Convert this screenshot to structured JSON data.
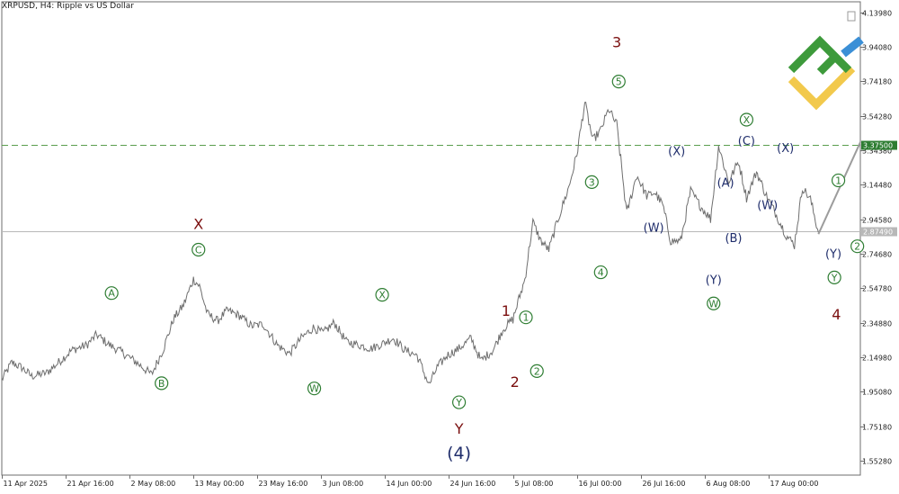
{
  "header": {
    "symbol_line": "XRPUSD, H4:  Ripple vs US Dollar"
  },
  "chart_data": {
    "type": "line",
    "title": "XRPUSD, H4:  Ripple vs US Dollar",
    "xlabel": "",
    "ylabel": "",
    "ylim": [
      1.47,
      4.2
    ],
    "y_ticks": [
      "1.55280",
      "1.75180",
      "1.95080",
      "2.14980",
      "2.34880",
      "2.54780",
      "2.74680",
      "2.94580",
      "3.14480",
      "3.34380",
      "3.54280",
      "3.74180",
      "3.94080",
      "4.13980"
    ],
    "x_ticks": [
      {
        "label": "11 Apr 2025",
        "i": 0
      },
      {
        "label": "21 Apr 16:00",
        "i": 64
      },
      {
        "label": "2 May 08:00",
        "i": 128
      },
      {
        "label": "13 May 00:00",
        "i": 192
      },
      {
        "label": "23 May 16:00",
        "i": 256
      },
      {
        "label": "3 Jun 08:00",
        "i": 320
      },
      {
        "label": "14 Jun 00:00",
        "i": 384
      },
      {
        "label": "24 Jun 16:00",
        "i": 448
      },
      {
        "label": "5 Jul 08:00",
        "i": 512
      },
      {
        "label": "16 Jul 00:00",
        "i": 576
      },
      {
        "label": "26 Jul 16:00",
        "i": 640
      },
      {
        "label": "6 Aug 08:00",
        "i": 704
      },
      {
        "label": "17 Aug 00:00",
        "i": 768
      }
    ],
    "x_range": [
      0,
      860
    ],
    "price_path": [
      [
        0,
        2.02
      ],
      [
        10,
        2.12
      ],
      [
        20,
        2.09
      ],
      [
        30,
        2.04
      ],
      [
        45,
        2.06
      ],
      [
        55,
        2.11
      ],
      [
        70,
        2.19
      ],
      [
        85,
        2.22
      ],
      [
        95,
        2.28
      ],
      [
        108,
        2.22
      ],
      [
        120,
        2.18
      ],
      [
        135,
        2.12
      ],
      [
        150,
        2.05
      ],
      [
        162,
        2.2
      ],
      [
        172,
        2.37
      ],
      [
        182,
        2.45
      ],
      [
        192,
        2.6
      ],
      [
        198,
        2.56
      ],
      [
        206,
        2.4
      ],
      [
        216,
        2.36
      ],
      [
        226,
        2.42
      ],
      [
        238,
        2.39
      ],
      [
        250,
        2.33
      ],
      [
        262,
        2.34
      ],
      [
        276,
        2.22
      ],
      [
        288,
        2.17
      ],
      [
        300,
        2.26
      ],
      [
        312,
        2.32
      ],
      [
        322,
        2.29
      ],
      [
        333,
        2.35
      ],
      [
        345,
        2.24
      ],
      [
        358,
        2.22
      ],
      [
        370,
        2.2
      ],
      [
        382,
        2.23
      ],
      [
        392,
        2.26
      ],
      [
        404,
        2.19
      ],
      [
        416,
        2.16
      ],
      [
        428,
        1.99
      ],
      [
        436,
        2.09
      ],
      [
        446,
        2.16
      ],
      [
        458,
        2.2
      ],
      [
        470,
        2.26
      ],
      [
        480,
        2.13
      ],
      [
        492,
        2.19
      ],
      [
        502,
        2.31
      ],
      [
        512,
        2.37
      ],
      [
        524,
        2.6
      ],
      [
        532,
        2.93
      ],
      [
        540,
        2.82
      ],
      [
        548,
        2.77
      ],
      [
        558,
        2.96
      ],
      [
        568,
        3.13
      ],
      [
        576,
        3.32
      ],
      [
        584,
        3.62
      ],
      [
        592,
        3.4
      ],
      [
        600,
        3.46
      ],
      [
        608,
        3.58
      ],
      [
        616,
        3.49
      ],
      [
        626,
        2.98
      ],
      [
        636,
        3.2
      ],
      [
        646,
        3.08
      ],
      [
        654,
        3.1
      ],
      [
        662,
        3.03
      ],
      [
        670,
        2.82
      ],
      [
        680,
        2.82
      ],
      [
        690,
        3.11
      ],
      [
        700,
        3.02
      ],
      [
        710,
        2.95
      ],
      [
        718,
        3.37
      ],
      [
        728,
        3.16
      ],
      [
        738,
        3.28
      ],
      [
        746,
        3.07
      ],
      [
        756,
        3.22
      ],
      [
        766,
        3.08
      ],
      [
        776,
        2.97
      ],
      [
        786,
        2.85
      ],
      [
        794,
        2.8
      ],
      [
        802,
        3.13
      ],
      [
        810,
        3.06
      ],
      [
        818,
        2.87
      ]
    ],
    "levels": [
      {
        "value": 3.375,
        "label": "3.37500",
        "style": "dashed",
        "color": "#5b9e4e",
        "tag_bg": "#2e7d32",
        "tag_color": "#ffffff"
      },
      {
        "value": 2.8749,
        "label": "2.87490",
        "style": "solid",
        "color": "#b8b8b8",
        "tag_bg": "#b8b8b8",
        "tag_color": "#ffffff"
      }
    ],
    "projection": {
      "from": [
        818,
        2.86
      ],
      "to": [
        860,
        3.39
      ],
      "color": "#9c9c9c"
    },
    "wave_labels": [
      {
        "text": "A",
        "i": 110,
        "v": 2.52,
        "style": "circle-green"
      },
      {
        "text": "B",
        "i": 160,
        "v": 2.0,
        "style": "circle-green"
      },
      {
        "text": "C",
        "i": 197,
        "v": 2.77,
        "style": "circle-green"
      },
      {
        "text": "X",
        "i": 197,
        "v": 2.92,
        "style": "red"
      },
      {
        "text": "W",
        "i": 313,
        "v": 1.97,
        "style": "circle-green"
      },
      {
        "text": "X",
        "i": 381,
        "v": 2.51,
        "style": "circle-green"
      },
      {
        "text": "Y",
        "i": 458,
        "v": 1.89,
        "style": "circle-green"
      },
      {
        "text": "Y",
        "i": 458,
        "v": 1.74,
        "style": "red"
      },
      {
        "text": "(4)",
        "i": 458,
        "v": 1.6,
        "style": "navy-large"
      },
      {
        "text": "1",
        "i": 505,
        "v": 2.42,
        "style": "red"
      },
      {
        "text": "1",
        "i": 525,
        "v": 2.38,
        "style": "circle-green"
      },
      {
        "text": "2",
        "i": 514,
        "v": 2.01,
        "style": "red"
      },
      {
        "text": "2",
        "i": 536,
        "v": 2.07,
        "style": "circle-green"
      },
      {
        "text": "3",
        "i": 591,
        "v": 3.16,
        "style": "circle-green"
      },
      {
        "text": "4",
        "i": 600,
        "v": 2.64,
        "style": "circle-green"
      },
      {
        "text": "3",
        "i": 616,
        "v": 3.97,
        "style": "red"
      },
      {
        "text": "5",
        "i": 618,
        "v": 3.74,
        "style": "circle-green"
      },
      {
        "text": "(W)",
        "i": 653,
        "v": 2.9,
        "style": "navy"
      },
      {
        "text": "(X)",
        "i": 676,
        "v": 3.34,
        "style": "navy"
      },
      {
        "text": "(Y)",
        "i": 713,
        "v": 2.6,
        "style": "navy"
      },
      {
        "text": "W",
        "i": 713,
        "v": 2.46,
        "style": "circle-green"
      },
      {
        "text": "(A)",
        "i": 725,
        "v": 3.16,
        "style": "navy"
      },
      {
        "text": "(B)",
        "i": 733,
        "v": 2.84,
        "style": "navy"
      },
      {
        "text": "X",
        "i": 746,
        "v": 3.52,
        "style": "circle-green"
      },
      {
        "text": "(C)",
        "i": 746,
        "v": 3.4,
        "style": "navy"
      },
      {
        "text": "(W)",
        "i": 767,
        "v": 3.03,
        "style": "navy"
      },
      {
        "text": "(X)",
        "i": 785,
        "v": 3.36,
        "style": "navy"
      },
      {
        "text": "1",
        "i": 838,
        "v": 3.17,
        "style": "circle-green"
      },
      {
        "text": "(Y)",
        "i": 833,
        "v": 2.75,
        "style": "navy"
      },
      {
        "text": "Y",
        "i": 834,
        "v": 2.61,
        "style": "circle-green"
      },
      {
        "text": "4",
        "i": 836,
        "v": 2.4,
        "style": "red"
      },
      {
        "text": "2",
        "i": 857,
        "v": 2.79,
        "style": "circle-green"
      }
    ],
    "colors": {
      "price": "#6e6e6e",
      "axis": "#6d6d6d",
      "text": "#202020",
      "green": "#2e7d32",
      "red": "#7a0e0e",
      "navy": "#1f2d6b"
    }
  }
}
